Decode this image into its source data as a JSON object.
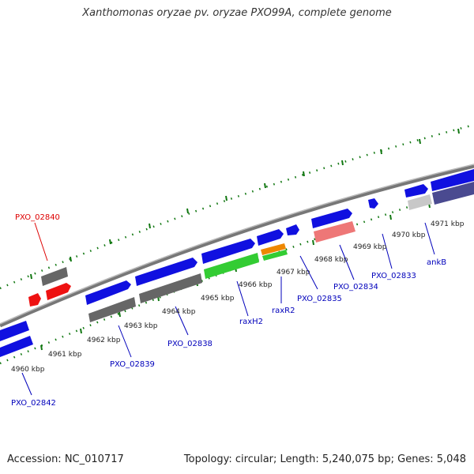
{
  "title": "Xanthomonas oryzae pv. oryzae PXO99A, complete genome",
  "footer": {
    "accession": "Accession: NC_010717",
    "topology": "Topology: circular; Length: 5,240,075 bp; Genes: 5,048"
  },
  "colors": {
    "blue_gene": "#1010e0",
    "gray_gene": "#666666",
    "red_gene": "#ee1111",
    "green_gene": "#33cc33",
    "orange_gene": "#ee8800",
    "pink_gene": "#ee7777",
    "light_gray_gene": "#c8c8c8",
    "purple_gene": "#4a4a90",
    "backbone": "#888888",
    "tick": "#117711",
    "label_blue": "#0000bb",
    "label_red": "#dd0000"
  },
  "kbp_ticks": [
    "4960 kbp",
    "4961 kbp",
    "4962 kbp",
    "4963 kbp",
    "4964 kbp",
    "4965 kbp",
    "4966 kbp",
    "4967 kbp",
    "4968 kbp",
    "4969 kbp",
    "4970 kbp",
    "4971 kbp"
  ],
  "gene_labels": {
    "pxo_02842": "PXO_02842",
    "pxo_02839": "PXO_02839",
    "pxo_02838": "PXO_02838",
    "raxh2": "raxH2",
    "raxr2": "raxR2",
    "pxo_02835": "PXO_02835",
    "pxo_02834": "PXO_02834",
    "pxo_02833": "PXO_02833",
    "ankb": "ankB",
    "pxo_02840": "PXO_02840"
  }
}
